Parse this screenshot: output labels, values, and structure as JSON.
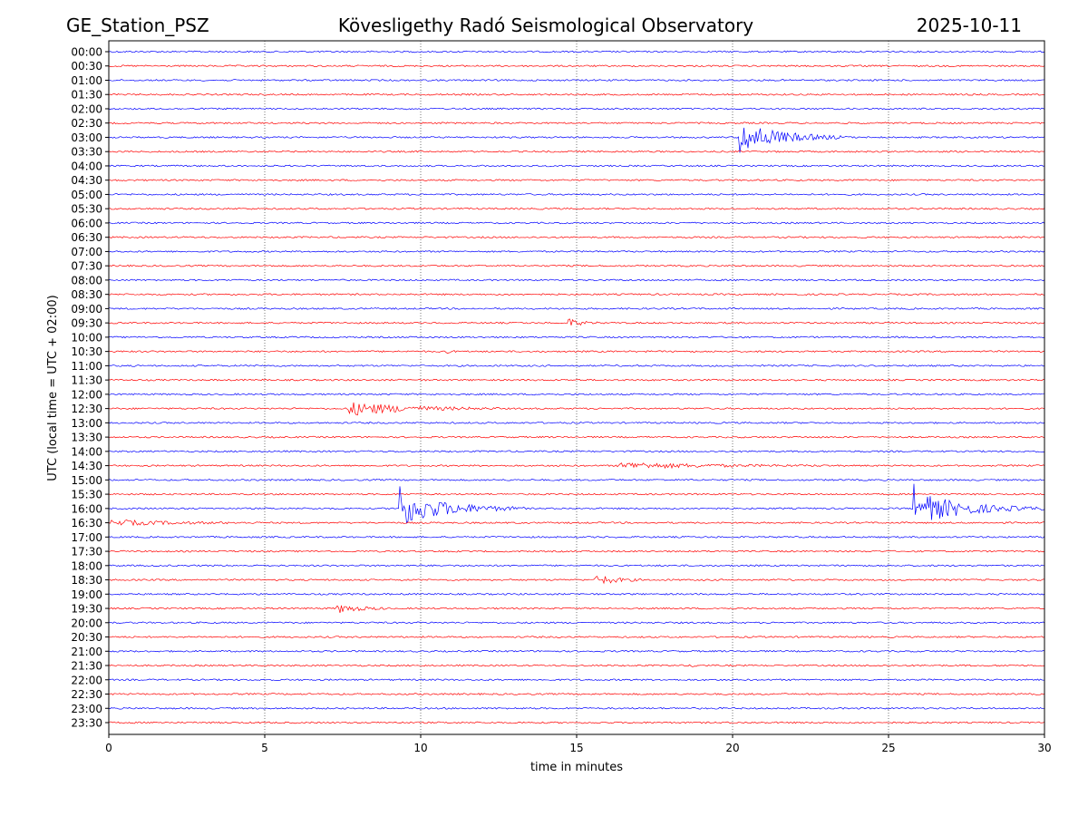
{
  "chart_data": {
    "type": "line",
    "title_left": "GE_Station_PSZ",
    "title_center": "Kövesligethy Radó Seismological Observatory",
    "title_right": "2025-10-11",
    "xlabel": "time in minutes",
    "ylabel": "UTC (local time = UTC + 02:00)",
    "xlim": [
      0,
      30
    ],
    "x_ticks": [
      "0",
      "5",
      "10",
      "15",
      "20",
      "25",
      "30"
    ],
    "x_tick_values": [
      0,
      5,
      10,
      15,
      20,
      25,
      30
    ],
    "grid": "vertical dotted at x ticks",
    "trace_colors": [
      "#0000ff",
      "#ff0000"
    ],
    "rows": [
      "00:00",
      "00:30",
      "01:00",
      "01:30",
      "02:00",
      "02:30",
      "03:00",
      "03:30",
      "04:00",
      "04:30",
      "05:00",
      "05:30",
      "06:00",
      "06:30",
      "07:00",
      "07:30",
      "08:00",
      "08:30",
      "09:00",
      "09:30",
      "10:00",
      "10:30",
      "11:00",
      "11:30",
      "12:00",
      "12:30",
      "13:00",
      "13:30",
      "14:00",
      "14:30",
      "15:00",
      "15:30",
      "16:00",
      "16:30",
      "17:00",
      "17:30",
      "18:00",
      "18:30",
      "19:00",
      "19:30",
      "20:00",
      "20:30",
      "21:00",
      "21:30",
      "22:00",
      "22:30",
      "23:00",
      "23:30"
    ],
    "events": [
      {
        "row": "03:00",
        "onset_min": 20.2,
        "duration_min": 3.5,
        "amplitude": 2.0
      },
      {
        "row": "09:30",
        "onset_min": 14.7,
        "duration_min": 1.0,
        "amplitude": 0.6
      },
      {
        "row": "10:30",
        "onset_min": 10.7,
        "duration_min": 0.5,
        "amplitude": 0.3
      },
      {
        "row": "12:00",
        "onset_min": 14.8,
        "duration_min": 0.1,
        "amplitude": 0.2
      },
      {
        "row": "12:30",
        "onset_min": 7.6,
        "duration_min": 5.0,
        "amplitude": 0.9
      },
      {
        "row": "14:30",
        "onset_min": 16.3,
        "duration_min": 7.0,
        "amplitude": 0.4
      },
      {
        "row": "16:00",
        "onset_min": 9.3,
        "duration_min": 4.0,
        "amplitude": 2.2
      },
      {
        "row": "16:00",
        "onset_min": 25.8,
        "duration_min": 4.2,
        "amplitude": 2.1
      },
      {
        "row": "16:30",
        "onset_min": 0.0,
        "duration_min": 5.0,
        "amplitude": 0.35
      },
      {
        "row": "18:30",
        "onset_min": 15.6,
        "duration_min": 1.5,
        "amplitude": 0.8
      },
      {
        "row": "19:30",
        "onset_min": 7.3,
        "duration_min": 1.8,
        "amplitude": 0.6
      },
      {
        "row": "21:30",
        "onset_min": 18.7,
        "duration_min": 0.2,
        "amplitude": 0.35
      }
    ]
  }
}
